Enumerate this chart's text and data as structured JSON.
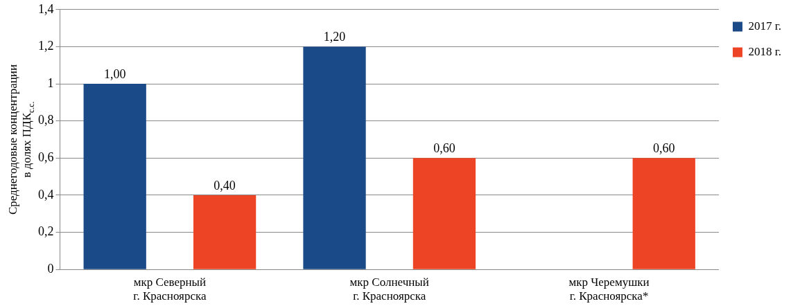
{
  "chart_data": {
    "type": "bar",
    "ylabel": "Среднегодовые концентрации в долях ПДК$_{с.с.}$",
    "categories": [
      "мкр Северный\nг. Красноярска",
      "мкр Солнечный\nг. Красноярска",
      "мкр Черемушки\nг. Красноярска*"
    ],
    "series": [
      {
        "name": "2017 г.",
        "color": "#1a4a87",
        "values": [
          1.0,
          1.2,
          null
        ],
        "value_labels": [
          "1,00",
          "1,20",
          null
        ]
      },
      {
        "name": "2018 г.",
        "color": "#ee4426",
        "values": [
          0.4,
          0.6,
          0.6
        ],
        "value_labels": [
          "0,40",
          "0,60",
          "0,60"
        ]
      }
    ],
    "ylim": [
      0,
      1.4
    ],
    "yticks": [
      0,
      {
        "value": 0.2,
        "label": "0,2"
      },
      {
        "value": 0.4,
        "label": "0,4"
      },
      {
        "value": 0.6,
        "label": "0,6"
      },
      {
        "value": 0.8,
        "label": "0,8"
      },
      1,
      {
        "value": 1.2,
        "label": "1,2"
      },
      {
        "value": 1.4,
        "label": "1,4"
      }
    ],
    "grid": "y",
    "legend": "top right"
  }
}
